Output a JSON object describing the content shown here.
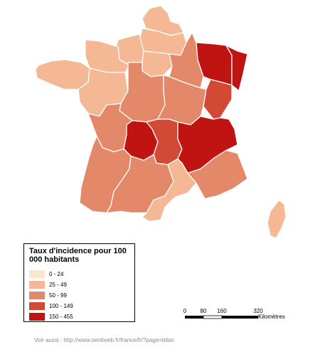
{
  "colors": {
    "c0": "#fde5cf",
    "c1": "#f4b994",
    "c2": "#e38868",
    "c3": "#d24a35",
    "c4": "#c01412"
  },
  "legend": {
    "title": "Taux d'incidence pour 100 000 habitants",
    "items": [
      {
        "label": "0 - 24",
        "color": "#fde5cf"
      },
      {
        "label": "25 - 49",
        "color": "#f4b994"
      },
      {
        "label": "50 - 99",
        "color": "#e38868"
      },
      {
        "label": "100 - 149",
        "color": "#d24a35"
      },
      {
        "label": "150 - 455",
        "color": "#c01412"
      }
    ]
  },
  "scale": {
    "ticks": [
      "0",
      "80",
      "160",
      "320"
    ],
    "unit": "Kilomètres"
  },
  "regions": [
    {
      "name": "nord-pas-de-calais",
      "class": "25 - 49"
    },
    {
      "name": "picardie",
      "class": "25 - 49"
    },
    {
      "name": "haute-normandie",
      "class": "25 - 49"
    },
    {
      "name": "basse-normandie",
      "class": "25 - 49"
    },
    {
      "name": "bretagne",
      "class": "25 - 49"
    },
    {
      "name": "pays-de-la-loire",
      "class": "25 - 49"
    },
    {
      "name": "ile-de-france",
      "class": "25 - 49"
    },
    {
      "name": "champagne-ardenne",
      "class": "50 - 99"
    },
    {
      "name": "lorraine",
      "class": "150 - 455"
    },
    {
      "name": "alsace",
      "class": "150 - 455"
    },
    {
      "name": "centre",
      "class": "50 - 99"
    },
    {
      "name": "bourgogne",
      "class": "50 - 99"
    },
    {
      "name": "franche-comte",
      "class": "100 - 149"
    },
    {
      "name": "poitou-charentes",
      "class": "50 - 99"
    },
    {
      "name": "limousin",
      "class": "150 - 455"
    },
    {
      "name": "auvergne",
      "class": "100 - 149"
    },
    {
      "name": "rhone-alpes",
      "class": "150 - 455"
    },
    {
      "name": "aquitaine",
      "class": "50 - 99"
    },
    {
      "name": "midi-pyrenees",
      "class": "50 - 99"
    },
    {
      "name": "languedoc-roussillon",
      "class": "25 - 49"
    },
    {
      "name": "provence-alpes-cote-d-azur",
      "class": "50 - 99"
    },
    {
      "name": "corse",
      "class": "25 - 49"
    }
  ],
  "footer": {
    "text": "Voir aussi : http://www.sentiweb.fr/france/fr/?page=bilan"
  }
}
